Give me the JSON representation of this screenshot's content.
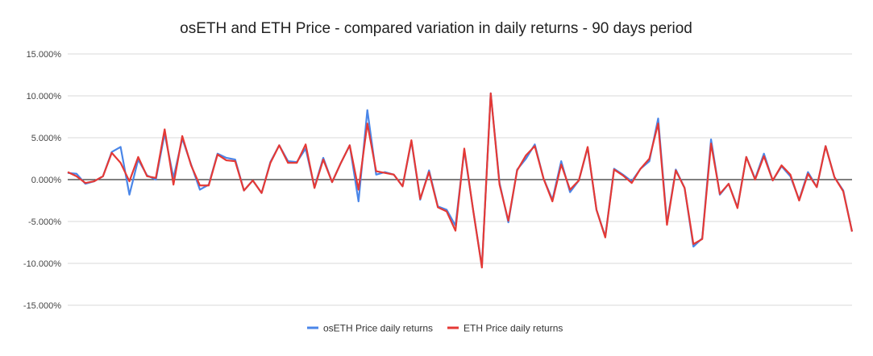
{
  "chart_data": {
    "type": "line",
    "title": "osETH and ETH Price - compared variation in daily returns - 90 days period",
    "xlabel": "",
    "ylabel": "",
    "ylim": [
      -15,
      15
    ],
    "yticks": [
      15,
      10,
      5,
      0,
      -5,
      -10,
      -15
    ],
    "ytick_labels": [
      "15.000%",
      "10.000%",
      "5.000%",
      "0.000%",
      "-5.000%",
      "-10.000%",
      "-15.000%"
    ],
    "grid": true,
    "legend_position": "bottom",
    "series": [
      {
        "name": "osETH Price daily returns",
        "color": "#4a86e8",
        "values": [
          0.8,
          0.7,
          -0.5,
          -0.2,
          0.4,
          3.3,
          3.9,
          -1.8,
          2.4,
          0.5,
          0.0,
          5.5,
          0.2,
          4.9,
          1.8,
          -1.2,
          -0.6,
          3.1,
          2.6,
          2.4,
          -1.3,
          -0.1,
          -1.6,
          2.1,
          4.1,
          2.2,
          2.1,
          3.7,
          -0.9,
          2.6,
          -0.3,
          2.0,
          4.1,
          -2.6,
          8.3,
          0.6,
          0.9,
          0.6,
          -0.8,
          4.6,
          -2.4,
          1.1,
          -3.2,
          -3.6,
          -5.5,
          3.5,
          -3.6,
          -10.4,
          10.3,
          -0.4,
          -5.1,
          1.2,
          2.5,
          4.2,
          0.1,
          -2.4,
          2.2,
          -1.5,
          -0.1,
          3.8,
          -3.6,
          -6.8,
          1.3,
          0.6,
          -0.2,
          1.3,
          2.2,
          7.3,
          -5.2,
          1.2,
          -1.0,
          -8.0,
          -7.0,
          4.8,
          -1.8,
          -0.5,
          -3.3,
          2.7,
          0.1,
          3.1,
          -0.1,
          1.6,
          0.4,
          -2.4,
          0.9,
          -0.9,
          4.0,
          0.3,
          -1.3,
          -6.2
        ]
      },
      {
        "name": "ETH Price daily returns",
        "color": "#e53935",
        "values": [
          0.9,
          0.4,
          -0.4,
          -0.2,
          0.4,
          3.2,
          2.0,
          -0.2,
          2.7,
          0.4,
          0.2,
          6.0,
          -0.6,
          5.2,
          1.7,
          -0.7,
          -0.7,
          3.0,
          2.3,
          2.2,
          -1.3,
          -0.1,
          -1.6,
          2.0,
          4.1,
          2.0,
          2.0,
          4.2,
          -1.0,
          2.4,
          -0.3,
          2.0,
          4.1,
          -1.2,
          6.7,
          1.0,
          0.8,
          0.6,
          -0.8,
          4.7,
          -2.3,
          0.9,
          -3.3,
          -3.8,
          -6.1,
          3.7,
          -3.6,
          -10.5,
          10.3,
          -0.6,
          -4.9,
          1.1,
          2.9,
          4.0,
          0.1,
          -2.6,
          1.8,
          -1.2,
          -0.1,
          3.9,
          -3.6,
          -6.9,
          1.2,
          0.5,
          -0.4,
          1.3,
          2.5,
          6.7,
          -5.4,
          1.1,
          -1.0,
          -7.7,
          -7.1,
          4.3,
          -1.7,
          -0.5,
          -3.4,
          2.7,
          0.0,
          2.8,
          -0.1,
          1.7,
          0.6,
          -2.5,
          0.7,
          -0.9,
          4.0,
          0.3,
          -1.4,
          -6.2
        ]
      }
    ]
  }
}
